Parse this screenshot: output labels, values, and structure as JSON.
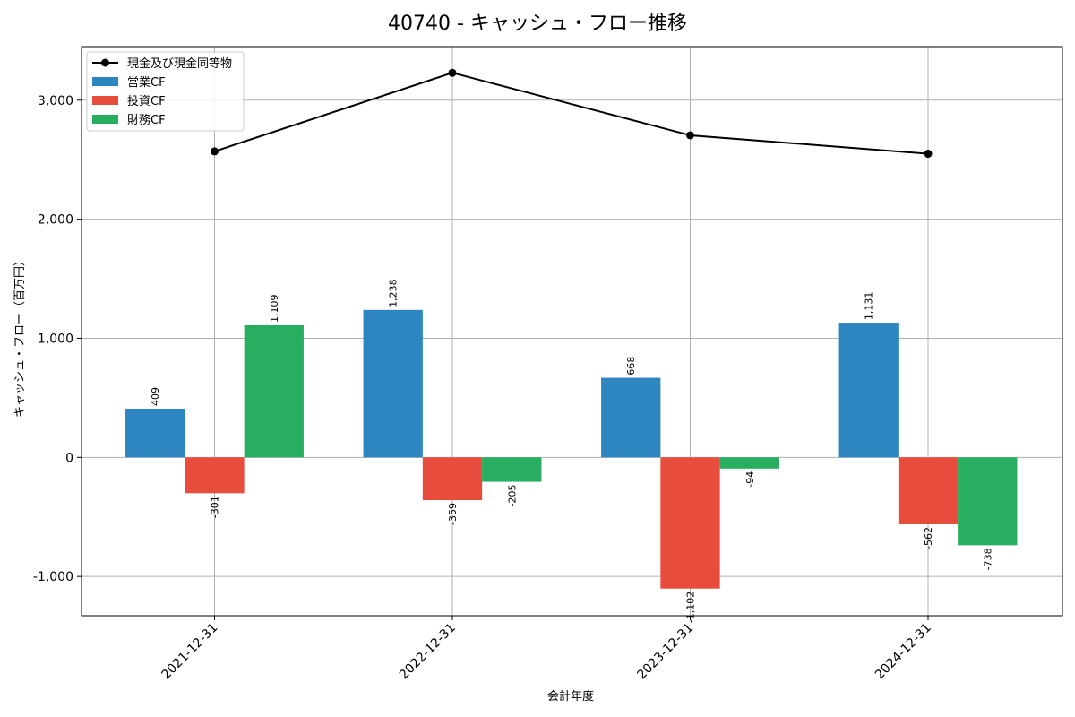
{
  "chart_data": {
    "type": "bar",
    "title": "40740 - キャッシュ・フロー推移",
    "xlabel": "会計年度",
    "ylabel": "キャッシュ・フロー（百万円）",
    "categories": [
      "2021-12-31",
      "2022-12-31",
      "2023-12-31",
      "2024-12-31"
    ],
    "ylim": [
      -1330,
      3450
    ],
    "yticks": [
      -1000,
      0,
      1000,
      2000,
      3000
    ],
    "ytick_labels": [
      "-1,000",
      "0",
      "1,000",
      "2,000",
      "3,000"
    ],
    "grid": true,
    "legend_position": "top-left",
    "series": [
      {
        "name": "営業CF",
        "kind": "bar",
        "color": "#2e86c1",
        "values": [
          409,
          1238,
          668,
          1131
        ],
        "labels": [
          "409",
          "1,238",
          "668",
          "1,131"
        ]
      },
      {
        "name": "投資CF",
        "kind": "bar",
        "color": "#e74c3c",
        "values": [
          -301,
          -359,
          -1102,
          -562
        ],
        "labels": [
          "-301",
          "-359",
          "-1,102",
          "-562"
        ]
      },
      {
        "name": "財務CF",
        "kind": "bar",
        "color": "#27ae60",
        "values": [
          1109,
          -205,
          -94,
          -738
        ],
        "labels": [
          "1,109",
          "-205",
          "-94",
          "-738"
        ]
      }
    ],
    "line_series": {
      "name": "現金及び現金同等物",
      "kind": "line",
      "color": "#000000",
      "values": [
        2570,
        3230,
        2705,
        2550
      ]
    }
  }
}
